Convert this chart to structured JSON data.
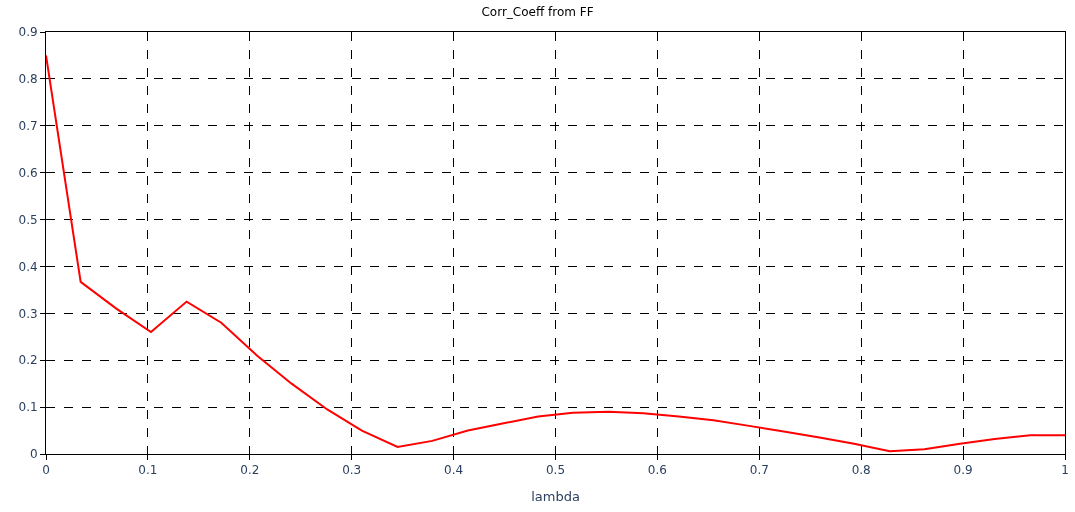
{
  "chart_data": {
    "type": "line",
    "title": "Corr_Coeff from FF",
    "xlabel": "lambda",
    "x": [
      0,
      0.034,
      0.069,
      0.103,
      0.138,
      0.172,
      0.207,
      0.241,
      0.276,
      0.31,
      0.345,
      0.379,
      0.414,
      0.448,
      0.483,
      0.517,
      0.552,
      0.586,
      0.621,
      0.655,
      0.69,
      0.724,
      0.759,
      0.793,
      0.828,
      0.862,
      0.897,
      0.931,
      0.966,
      1.0
    ],
    "series": [
      {
        "color": "#ff0000",
        "values": [
          0.85,
          0.367,
          0.31,
          0.26,
          0.325,
          0.28,
          0.21,
          0.15,
          0.095,
          0.05,
          0.015,
          0.028,
          0.05,
          0.065,
          0.08,
          0.088,
          0.09,
          0.087,
          0.08,
          0.072,
          0.06,
          0.048,
          0.035,
          0.022,
          0.006,
          0.01,
          0.022,
          0.032,
          0.04,
          0.04
        ]
      }
    ],
    "xlim": [
      0,
      1
    ],
    "xticks": [
      0,
      0.1,
      0.2,
      0.3,
      0.4,
      0.5,
      0.6,
      0.7,
      0.8,
      0.9,
      1
    ],
    "ylim": [
      0,
      0.9
    ],
    "yticks": [
      0,
      0.1,
      0.2,
      0.3,
      0.4,
      0.5,
      0.6,
      0.7,
      0.8,
      0.9
    ],
    "grid": true,
    "legend": false,
    "marker": "none",
    "line_style": "solid"
  }
}
